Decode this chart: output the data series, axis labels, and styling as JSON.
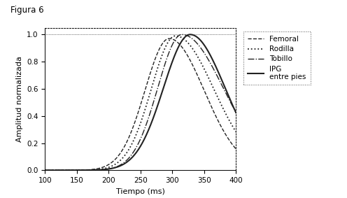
{
  "title": "Figura 6",
  "xlabel": "Tiempo (ms)",
  "ylabel": "Amplitud normalizada",
  "xlim": [
    100,
    400
  ],
  "ylim": [
    0,
    1.05
  ],
  "xticks": [
    100,
    150,
    200,
    250,
    300,
    350,
    400
  ],
  "yticks": [
    0,
    0.2,
    0.4,
    0.6,
    0.8,
    1
  ],
  "curves": [
    {
      "label": "Femoral",
      "linestyle": "--",
      "color": "#222222",
      "linewidth": 1.0,
      "mu": 295,
      "sigma_rise": 38,
      "sigma_fall": 55,
      "peak": 0.97
    },
    {
      "label": "Rodilla",
      "linestyle": ":",
      "color": "#222222",
      "linewidth": 1.3,
      "mu": 305,
      "sigma_rise": 38,
      "sigma_fall": 60,
      "peak": 0.99
    },
    {
      "label": "Tobillo",
      "linestyle": "-.",
      "color": "#222222",
      "linewidth": 1.0,
      "mu": 315,
      "sigma_rise": 38,
      "sigma_fall": 65,
      "peak": 1.0
    },
    {
      "label": "IPG\nentre pies",
      "linestyle": "-",
      "color": "#222222",
      "linewidth": 1.5,
      "mu": 328,
      "sigma_rise": 42,
      "sigma_fall": 55,
      "peak": 1.0
    }
  ],
  "background_color": "#ffffff",
  "figure_label": "Figura 6"
}
